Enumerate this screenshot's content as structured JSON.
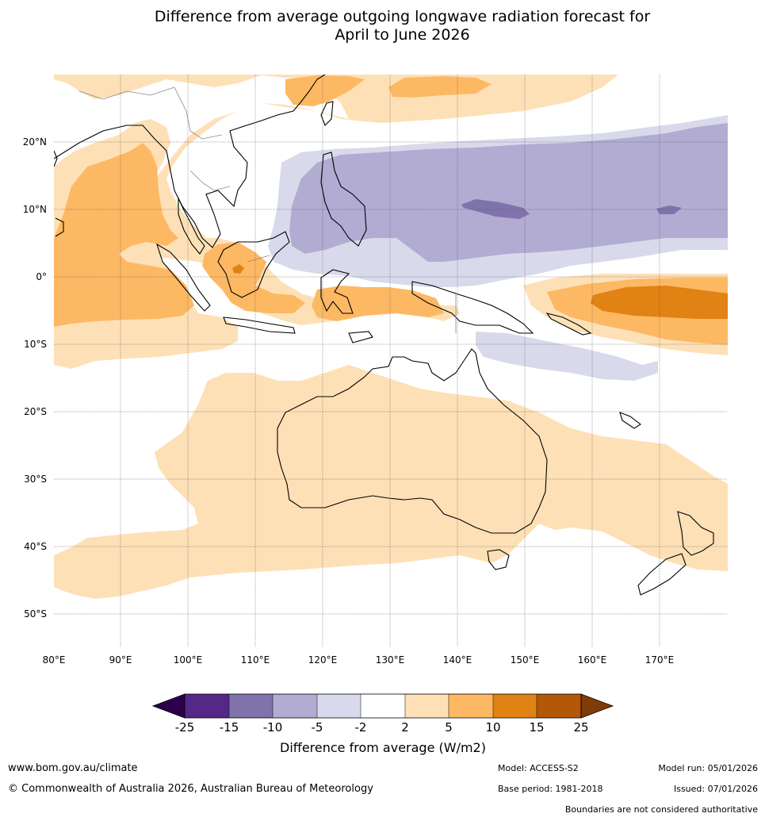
{
  "title_line1": "Difference from average outgoing longwave radiation forecast for",
  "title_line2": "April to June 2026",
  "map": {
    "lon_ticks": [
      "80°E",
      "90°E",
      "100°E",
      "110°E",
      "120°E",
      "130°E",
      "140°E",
      "150°E",
      "160°E",
      "170°E"
    ],
    "lat_ticks": [
      "20°N",
      "10°N",
      "0°",
      "10°S",
      "20°S",
      "30°S",
      "40°S",
      "50°S"
    ],
    "lon_range": [
      80,
      180
    ],
    "lat_range": [
      -55,
      30
    ]
  },
  "colorbar": {
    "title": "Difference from average (W/m2)",
    "tick_labels": [
      "-25",
      "-15",
      "-10",
      "-5",
      "-2",
      "2",
      "5",
      "10",
      "15",
      "25"
    ],
    "colors": {
      "below_min": "#2d004b",
      "n25_n15": "#542788",
      "n15_n10": "#8073ac",
      "n10_n5": "#b2abd2",
      "n5_n2": "#d8daeb",
      "n2_p2": "#ffffff",
      "p2_p5": "#fee0b6",
      "p5_p10": "#fdb863",
      "p10_p15": "#e08214",
      "p15_p25": "#b35806",
      "above_max": "#7f3b08"
    }
  },
  "footer": {
    "website": "www.bom.gov.au/climate",
    "copyright": "© Commonwealth of Australia 2026, Australian Bureau of Meteorology",
    "model": "Model: ACCESS-S2",
    "base_period": "Base period: 1981-2018",
    "model_run": "Model run: 05/01/2026",
    "issued": "Issued: 07/01/2026",
    "boundaries_note": "Boundaries are not considered authoritative"
  }
}
